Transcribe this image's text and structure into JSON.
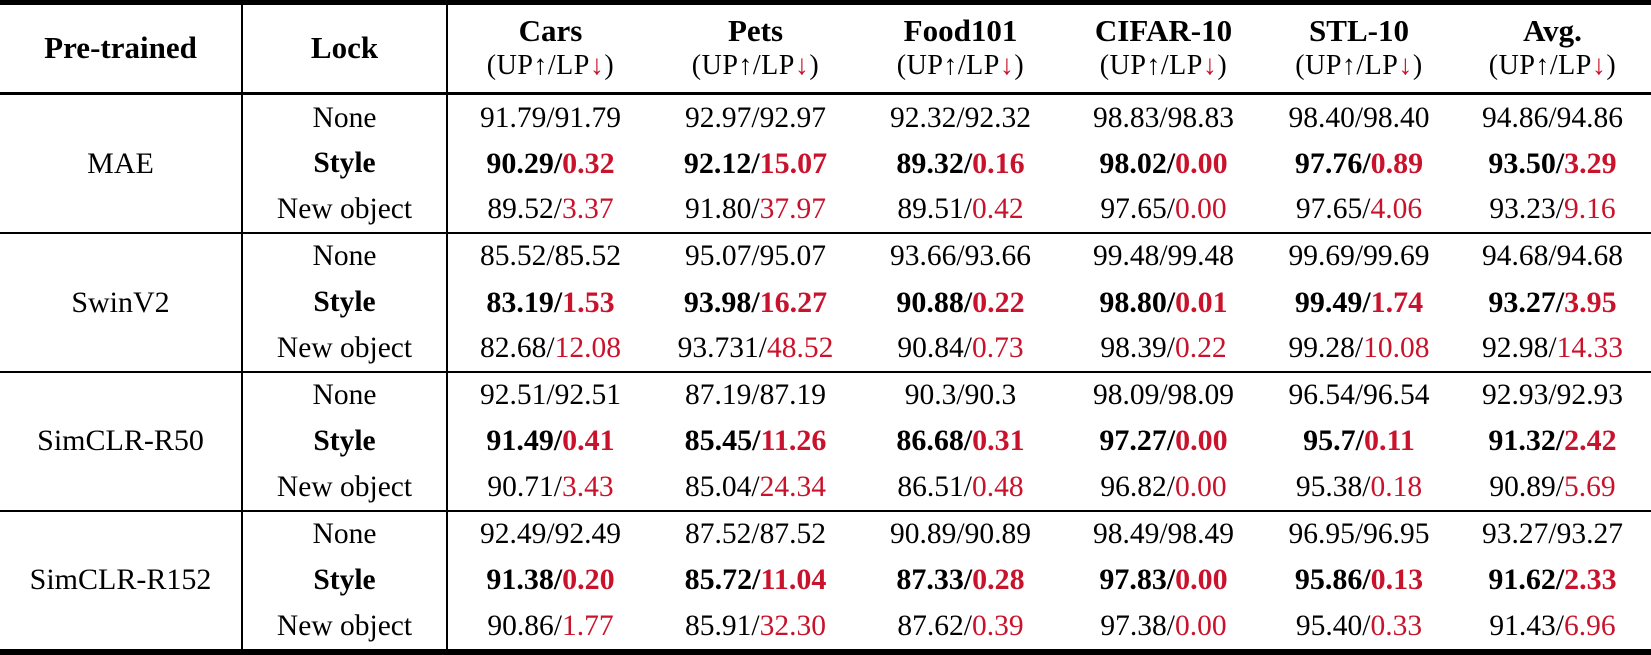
{
  "header": {
    "pretrained_label": "Pre-trained",
    "lock_label": "Lock",
    "datasets": [
      "Cars",
      "Pets",
      "Food101",
      "CIFAR-10",
      "STL-10",
      "Avg."
    ],
    "metric_line": {
      "prefix": "(UP",
      "up_arrow": "↑",
      "mid": "/LP",
      "down_arrow": "↓",
      "suffix": ")"
    }
  },
  "value_separator": "/",
  "colors": {
    "accent_red": "#c9132c",
    "text": "#000000",
    "background": "#ffffff"
  },
  "groups": [
    {
      "pretrained": "MAE",
      "rows": [
        {
          "lock": "None",
          "bold": false,
          "red_lp": false,
          "cells": [
            [
              "91.79",
              "91.79"
            ],
            [
              "92.97",
              "92.97"
            ],
            [
              "92.32",
              "92.32"
            ],
            [
              "98.83",
              "98.83"
            ],
            [
              "98.40",
              "98.40"
            ],
            [
              "94.86",
              "94.86"
            ]
          ]
        },
        {
          "lock": "Style",
          "bold": true,
          "red_lp": true,
          "cells": [
            [
              "90.29",
              "0.32"
            ],
            [
              "92.12",
              "15.07"
            ],
            [
              "89.32",
              "0.16"
            ],
            [
              "98.02",
              "0.00"
            ],
            [
              "97.76",
              "0.89"
            ],
            [
              "93.50",
              "3.29"
            ]
          ]
        },
        {
          "lock": "New object",
          "bold": false,
          "red_lp": true,
          "cells": [
            [
              "89.52",
              "3.37"
            ],
            [
              "91.80",
              "37.97"
            ],
            [
              "89.51",
              "0.42"
            ],
            [
              "97.65",
              "0.00"
            ],
            [
              "97.65",
              "4.06"
            ],
            [
              "93.23",
              "9.16"
            ]
          ]
        }
      ]
    },
    {
      "pretrained": "SwinV2",
      "rows": [
        {
          "lock": "None",
          "bold": false,
          "red_lp": false,
          "cells": [
            [
              "85.52",
              "85.52"
            ],
            [
              "95.07",
              "95.07"
            ],
            [
              "93.66",
              "93.66"
            ],
            [
              "99.48",
              "99.48"
            ],
            [
              "99.69",
              "99.69"
            ],
            [
              "94.68",
              "94.68"
            ]
          ]
        },
        {
          "lock": "Style",
          "bold": true,
          "red_lp": true,
          "cells": [
            [
              "83.19",
              "1.53"
            ],
            [
              "93.98",
              "16.27"
            ],
            [
              "90.88",
              "0.22"
            ],
            [
              "98.80",
              "0.01"
            ],
            [
              "99.49",
              "1.74"
            ],
            [
              "93.27",
              "3.95"
            ]
          ]
        },
        {
          "lock": "New object",
          "bold": false,
          "red_lp": true,
          "cells": [
            [
              "82.68",
              "12.08"
            ],
            [
              "93.731",
              "48.52"
            ],
            [
              "90.84",
              "0.73"
            ],
            [
              "98.39",
              "0.22"
            ],
            [
              "99.28",
              "10.08"
            ],
            [
              "92.98",
              "14.33"
            ]
          ]
        }
      ]
    },
    {
      "pretrained": "SimCLR-R50",
      "rows": [
        {
          "lock": "None",
          "bold": false,
          "red_lp": false,
          "cells": [
            [
              "92.51",
              "92.51"
            ],
            [
              "87.19",
              "87.19"
            ],
            [
              "90.3",
              "90.3"
            ],
            [
              "98.09",
              "98.09"
            ],
            [
              "96.54",
              "96.54"
            ],
            [
              "92.93",
              "92.93"
            ]
          ]
        },
        {
          "lock": "Style",
          "bold": true,
          "red_lp": true,
          "cells": [
            [
              "91.49",
              "0.41"
            ],
            [
              "85.45",
              "11.26"
            ],
            [
              "86.68",
              "0.31"
            ],
            [
              "97.27",
              "0.00"
            ],
            [
              "95.7",
              "0.11"
            ],
            [
              "91.32",
              "2.42"
            ]
          ]
        },
        {
          "lock": "New object",
          "bold": false,
          "red_lp": true,
          "cells": [
            [
              "90.71",
              "3.43"
            ],
            [
              "85.04",
              "24.34"
            ],
            [
              "86.51",
              "0.48"
            ],
            [
              "96.82",
              "0.00"
            ],
            [
              "95.38",
              "0.18"
            ],
            [
              "90.89",
              "5.69"
            ]
          ]
        }
      ]
    },
    {
      "pretrained": "SimCLR-R152",
      "rows": [
        {
          "lock": "None",
          "bold": false,
          "red_lp": false,
          "cells": [
            [
              "92.49",
              "92.49"
            ],
            [
              "87.52",
              "87.52"
            ],
            [
              "90.89",
              "90.89"
            ],
            [
              "98.49",
              "98.49"
            ],
            [
              "96.95",
              "96.95"
            ],
            [
              "93.27",
              "93.27"
            ]
          ]
        },
        {
          "lock": "Style",
          "bold": true,
          "red_lp": true,
          "cells": [
            [
              "91.38",
              "0.20"
            ],
            [
              "85.72",
              "11.04"
            ],
            [
              "87.33",
              "0.28"
            ],
            [
              "97.83",
              "0.00"
            ],
            [
              "95.86",
              "0.13"
            ],
            [
              "91.62",
              "2.33"
            ]
          ]
        },
        {
          "lock": "New object",
          "bold": false,
          "red_lp": true,
          "cells": [
            [
              "90.86",
              "1.77"
            ],
            [
              "85.91",
              "32.30"
            ],
            [
              "87.62",
              "0.39"
            ],
            [
              "97.38",
              "0.00"
            ],
            [
              "95.40",
              "0.33"
            ],
            [
              "91.43",
              "6.96"
            ]
          ]
        }
      ]
    }
  ]
}
